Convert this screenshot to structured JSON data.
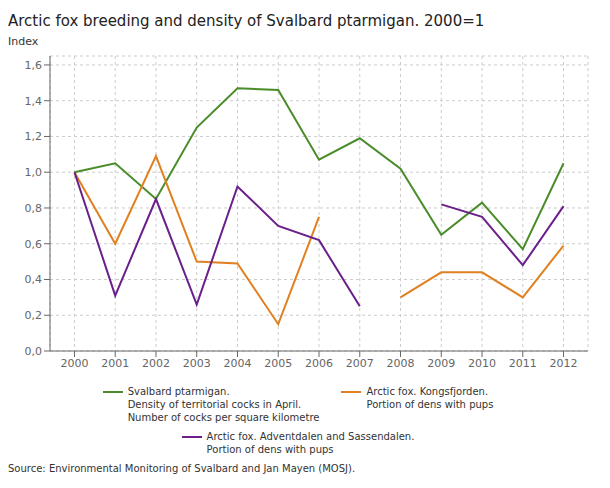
{
  "chart_data": {
    "type": "line",
    "title": "Arctic fox breeding and density of Svalbard ptarmigan. 2000=1",
    "ylabel": "Index",
    "source": "Source: Environmental Monitoring of Svalbard and Jan Mayen (MOSJ).",
    "x": [
      2000,
      2001,
      2002,
      2003,
      2004,
      2005,
      2006,
      2007,
      2008,
      2009,
      2010,
      2011,
      2012
    ],
    "series": [
      {
        "name": "Svalbard ptarmigan.\nDensity of territorial cocks in April.\nNumber of cocks per square kilometre",
        "color": "#4a8c2a",
        "values": [
          1.0,
          1.05,
          0.85,
          1.25,
          1.47,
          1.46,
          1.07,
          1.19,
          1.02,
          0.65,
          0.83,
          0.57,
          1.05
        ]
      },
      {
        "name": "Arctic fox. Kongsfjorden.\nPortion of dens with pups",
        "color": "#e08020",
        "values": [
          1.0,
          0.6,
          1.09,
          0.5,
          0.49,
          0.15,
          0.75,
          null,
          0.3,
          0.44,
          0.44,
          0.3,
          0.59
        ]
      },
      {
        "name": "Arctic fox. Adventdalen and Sassendalen.\nPortion of dens with pups",
        "color": "#6a1f8a",
        "values": [
          1.0,
          0.31,
          0.85,
          0.26,
          0.92,
          0.7,
          0.62,
          0.25,
          null,
          0.82,
          0.75,
          0.48,
          0.81
        ]
      }
    ],
    "xlim": [
      1999.4,
      2012.6
    ],
    "xticks": [
      2000,
      2001,
      2002,
      2003,
      2004,
      2005,
      2006,
      2007,
      2008,
      2009,
      2010,
      2011,
      2012
    ],
    "ylim": [
      0.0,
      1.65
    ],
    "yticks": [
      {
        "value": 0.0,
        "label": "0,0"
      },
      {
        "value": 0.2,
        "label": "0,2"
      },
      {
        "value": 0.4,
        "label": "0,4"
      },
      {
        "value": 0.6,
        "label": "0,6"
      },
      {
        "value": 0.8,
        "label": "0,8"
      },
      {
        "value": 1.0,
        "label": "1,0"
      },
      {
        "value": 1.2,
        "label": "1,2"
      },
      {
        "value": 1.4,
        "label": "1,4"
      },
      {
        "value": 1.6,
        "label": "1,6"
      }
    ],
    "grid": true,
    "legend": "bottom"
  }
}
